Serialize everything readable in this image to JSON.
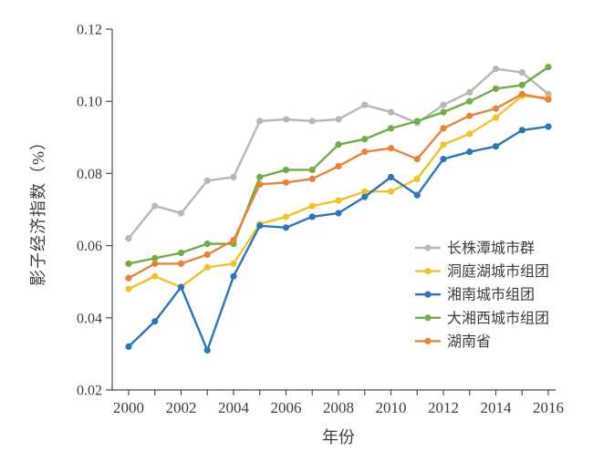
{
  "figure": {
    "background": "#ffffff",
    "axis_color": "#4d4d4d",
    "text_color": "#3d3d3d"
  },
  "chart_data": {
    "type": "line",
    "title": "",
    "xlabel": "年份",
    "ylabel": "影子经济指数（%）",
    "xlim": [
      2000,
      2016
    ],
    "ylim": [
      0.02,
      0.12
    ],
    "grid": false,
    "legend_position": "inside-right",
    "x": [
      2000,
      2001,
      2002,
      2003,
      2004,
      2005,
      2006,
      2007,
      2008,
      2009,
      2010,
      2011,
      2012,
      2013,
      2014,
      2015,
      2016
    ],
    "x_tick_label_years": [
      2000,
      2002,
      2004,
      2006,
      2008,
      2010,
      2012,
      2014,
      2016
    ],
    "x_tick_labels": [
      "2000",
      "2002",
      "2004",
      "2006",
      "2008",
      "2010",
      "2012",
      "2014",
      "2016"
    ],
    "y_ticks": [
      0.02,
      0.04,
      0.06,
      0.08,
      0.1,
      0.12
    ],
    "y_tick_labels": [
      "0.02",
      "0.04",
      "0.06",
      "0.08",
      "0.10",
      "0.12"
    ],
    "series": [
      {
        "name": "长株潭城市群",
        "color": "#b7b7b7",
        "values": [
          0.062,
          0.071,
          0.069,
          0.078,
          0.079,
          0.0945,
          0.095,
          0.0945,
          0.095,
          0.099,
          0.097,
          0.094,
          0.099,
          0.1025,
          0.109,
          0.108,
          0.102
        ]
      },
      {
        "name": "洞庭湖城市组团",
        "color": "#f2c12e",
        "values": [
          0.048,
          0.0515,
          0.0485,
          0.054,
          0.055,
          0.066,
          0.068,
          0.071,
          0.0725,
          0.075,
          0.075,
          0.0785,
          0.088,
          0.091,
          0.0955,
          0.1015,
          0.101
        ]
      },
      {
        "name": "湘南城市组团",
        "color": "#2e75b6",
        "values": [
          0.032,
          0.039,
          0.0485,
          0.031,
          0.0515,
          0.0655,
          0.065,
          0.068,
          0.069,
          0.0735,
          0.079,
          0.074,
          0.084,
          0.086,
          0.0875,
          0.092,
          0.093
        ]
      },
      {
        "name": "大湘西城市组团",
        "color": "#70ad47",
        "values": [
          0.055,
          0.0565,
          0.058,
          0.0605,
          0.0605,
          0.079,
          0.081,
          0.081,
          0.088,
          0.0895,
          0.0925,
          0.0945,
          0.097,
          0.1,
          0.1035,
          0.1045,
          0.1095
        ]
      },
      {
        "name": "湖南省",
        "color": "#e8833a",
        "values": [
          0.051,
          0.055,
          0.055,
          0.0575,
          0.0615,
          0.077,
          0.0775,
          0.0785,
          0.082,
          0.086,
          0.087,
          0.084,
          0.0925,
          0.096,
          0.098,
          0.102,
          0.1005
        ]
      }
    ]
  }
}
